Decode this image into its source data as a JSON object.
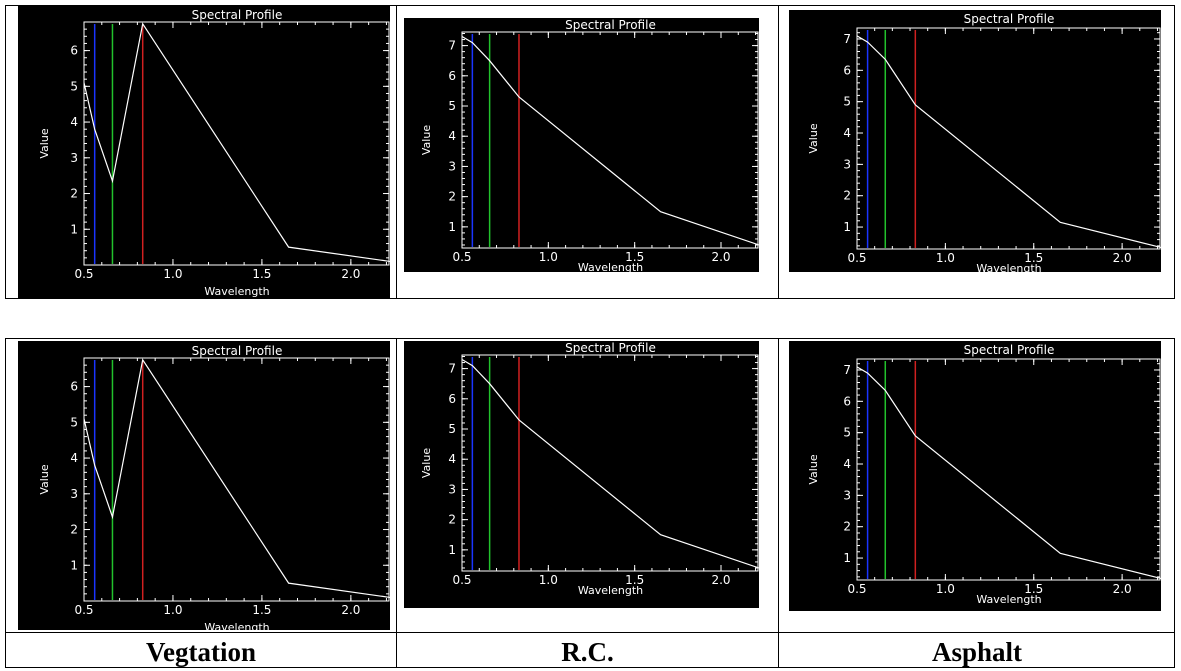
{
  "colors": {
    "background": "#000000",
    "axes": "#ffffff",
    "profile": "#ffffff",
    "blue_band": "#1a34ff",
    "green_band": "#22c22c",
    "red_band": "#d02020"
  },
  "band_markers": {
    "blue": 0.56,
    "green": 0.66,
    "red": 0.83
  },
  "captions": {
    "vegetation": "Vegtation",
    "rc": "R.C.",
    "asphalt": "Asphalt"
  },
  "chart_data": [
    {
      "type": "line",
      "title": "Spectral Profile",
      "xlabel": "Wavelength",
      "ylabel": "Value",
      "xlim": [
        0.5,
        2.22
      ],
      "ylim": [
        0,
        6.8
      ],
      "x_ticks": [
        "0.5",
        "1.0",
        "1.5",
        "2.0"
      ],
      "y_ticks": [
        "1",
        "2",
        "3",
        "4",
        "5",
        "6"
      ],
      "series": [
        {
          "x": [
            0.485,
            0.56,
            0.66,
            0.83,
            1.65,
            2.22
          ],
          "values": [
            5.1,
            3.8,
            2.35,
            6.75,
            0.5,
            0.1
          ]
        }
      ]
    },
    {
      "type": "line",
      "title": "Spectral Profile",
      "xlabel": "Wavelength",
      "ylabel": "Value",
      "xlim": [
        0.5,
        2.22
      ],
      "ylim": [
        0.3,
        7.45
      ],
      "x_ticks": [
        "0.5",
        "1.0",
        "1.5",
        "2.0"
      ],
      "y_ticks": [
        "1",
        "2",
        "3",
        "4",
        "5",
        "6",
        "7"
      ],
      "series": [
        {
          "x": [
            0.485,
            0.56,
            0.66,
            0.83,
            1.65,
            2.22
          ],
          "values": [
            7.3,
            7.1,
            6.5,
            5.3,
            1.5,
            0.4
          ]
        }
      ]
    },
    {
      "type": "line",
      "title": "Spectral Profile",
      "xlabel": "Wavelength",
      "ylabel": "Value",
      "xlim": [
        0.5,
        2.22
      ],
      "ylim": [
        0.3,
        7.35
      ],
      "x_ticks": [
        "0.5",
        "1.0",
        "1.5",
        "2.0"
      ],
      "y_ticks": [
        "1",
        "2",
        "3",
        "4",
        "5",
        "6",
        "7"
      ],
      "series": [
        {
          "x": [
            0.485,
            0.56,
            0.66,
            0.83,
            1.65,
            2.22
          ],
          "values": [
            7.1,
            6.9,
            6.35,
            4.9,
            1.15,
            0.35
          ]
        }
      ]
    },
    {
      "type": "line",
      "title": "Spectral Profile",
      "xlabel": "Wavelength",
      "ylabel": "Value",
      "xlim": [
        0.5,
        2.22
      ],
      "ylim": [
        0,
        6.8
      ],
      "x_ticks": [
        "0.5",
        "1.0",
        "1.5",
        "2.0"
      ],
      "y_ticks": [
        "1",
        "2",
        "3",
        "4",
        "5",
        "6"
      ],
      "series": [
        {
          "x": [
            0.485,
            0.56,
            0.66,
            0.83,
            1.65,
            2.22
          ],
          "values": [
            5.1,
            3.8,
            2.35,
            6.75,
            0.5,
            0.1
          ]
        }
      ]
    },
    {
      "type": "line",
      "title": "Spectral Profile",
      "xlabel": "Wavelength",
      "ylabel": "Value",
      "xlim": [
        0.5,
        2.22
      ],
      "ylim": [
        0.3,
        7.45
      ],
      "x_ticks": [
        "0.5",
        "1.0",
        "1.5",
        "2.0"
      ],
      "y_ticks": [
        "1",
        "2",
        "3",
        "4",
        "5",
        "6",
        "7"
      ],
      "series": [
        {
          "x": [
            0.485,
            0.56,
            0.66,
            0.83,
            1.65,
            2.22
          ],
          "values": [
            7.3,
            7.1,
            6.5,
            5.3,
            1.5,
            0.4
          ]
        }
      ]
    },
    {
      "type": "line",
      "title": "Spectral Profile",
      "xlabel": "Wavelength",
      "ylabel": "Value",
      "xlim": [
        0.5,
        2.22
      ],
      "ylim": [
        0.3,
        7.35
      ],
      "x_ticks": [
        "0.5",
        "1.0",
        "1.5",
        "2.0"
      ],
      "y_ticks": [
        "1",
        "2",
        "3",
        "4",
        "5",
        "6",
        "7"
      ],
      "series": [
        {
          "x": [
            0.485,
            0.56,
            0.66,
            0.83,
            1.65,
            2.22
          ],
          "values": [
            7.1,
            6.9,
            6.35,
            4.9,
            1.15,
            0.35
          ]
        }
      ]
    }
  ]
}
